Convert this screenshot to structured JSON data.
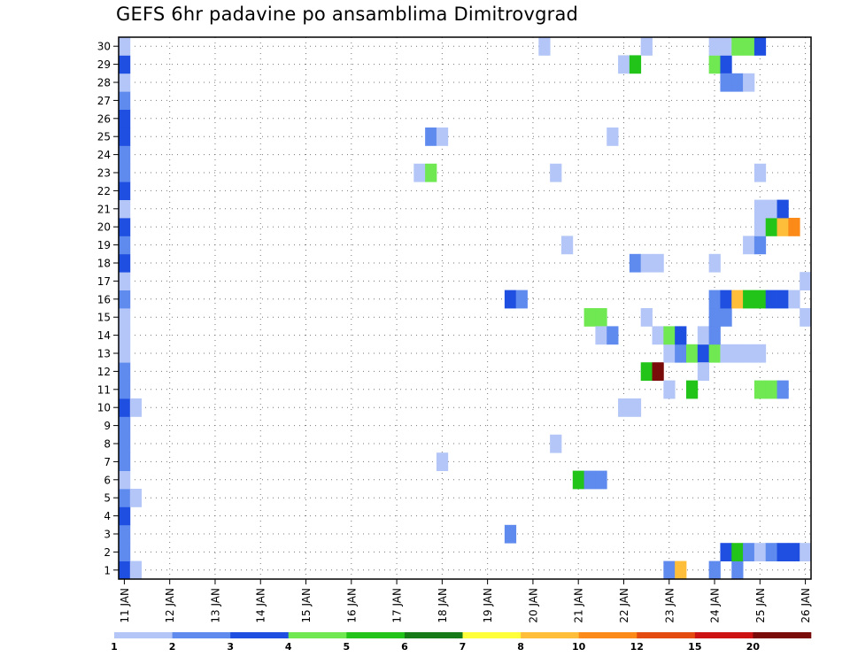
{
  "chart_data": {
    "type": "heatmap",
    "title": "GEFS 6hr padavine po ansamblima Dimitrovgrad",
    "xlabel": "",
    "ylabel": "",
    "y_ticks": [
      1,
      2,
      3,
      4,
      5,
      6,
      7,
      8,
      9,
      10,
      11,
      12,
      13,
      14,
      15,
      16,
      17,
      18,
      19,
      20,
      21,
      22,
      23,
      24,
      25,
      26,
      27,
      28,
      29,
      30
    ],
    "ylim": [
      0.5,
      30.5
    ],
    "x_ticks": [
      "11 JAN",
      "12 JAN",
      "13 JAN",
      "14 JAN",
      "15 JAN",
      "16 JAN",
      "17 JAN",
      "18 JAN",
      "19 JAN",
      "20 JAN",
      "21 JAN",
      "22 JAN",
      "23 JAN",
      "24 JAN",
      "25 JAN",
      "26 JAN"
    ],
    "x_step_hours": 6,
    "x_cells": 61,
    "grid": true,
    "legend": {
      "placement": "bottom",
      "colors": [
        "#b4c6f7",
        "#5f8aee",
        "#1f4fe0",
        "#6fe852",
        "#22c41a",
        "#167a17",
        "#ffff3a",
        "#ffbe3a",
        "#fb8a18",
        "#e44b10",
        "#cc1212",
        "#7a0b0b"
      ],
      "labels": [
        "1",
        "2",
        "3",
        "4",
        "5",
        "6",
        "7",
        "8",
        "10",
        "12",
        "15",
        "20"
      ]
    },
    "cells": [
      {
        "t": 0,
        "m": 1,
        "c": 3
      },
      {
        "t": 0,
        "m": 2,
        "c": 2
      },
      {
        "t": 0,
        "m": 3,
        "c": 2
      },
      {
        "t": 0,
        "m": 4,
        "c": 3
      },
      {
        "t": 0,
        "m": 5,
        "c": 2
      },
      {
        "t": 0,
        "m": 6,
        "c": 1
      },
      {
        "t": 0,
        "m": 7,
        "c": 2
      },
      {
        "t": 0,
        "m": 8,
        "c": 2
      },
      {
        "t": 0,
        "m": 9,
        "c": 2
      },
      {
        "t": 0,
        "m": 10,
        "c": 3
      },
      {
        "t": 0,
        "m": 11,
        "c": 2
      },
      {
        "t": 0,
        "m": 12,
        "c": 2
      },
      {
        "t": 0,
        "m": 13,
        "c": 1
      },
      {
        "t": 0,
        "m": 14,
        "c": 1
      },
      {
        "t": 0,
        "m": 15,
        "c": 1
      },
      {
        "t": 0,
        "m": 16,
        "c": 2
      },
      {
        "t": 0,
        "m": 17,
        "c": 1
      },
      {
        "t": 0,
        "m": 18,
        "c": 3
      },
      {
        "t": 0,
        "m": 19,
        "c": 2
      },
      {
        "t": 0,
        "m": 20,
        "c": 3
      },
      {
        "t": 0,
        "m": 21,
        "c": 1
      },
      {
        "t": 0,
        "m": 22,
        "c": 3
      },
      {
        "t": 0,
        "m": 23,
        "c": 2
      },
      {
        "t": 0,
        "m": 24,
        "c": 2
      },
      {
        "t": 0,
        "m": 25,
        "c": 3
      },
      {
        "t": 0,
        "m": 26,
        "c": 3
      },
      {
        "t": 0,
        "m": 27,
        "c": 2
      },
      {
        "t": 0,
        "m": 28,
        "c": 1
      },
      {
        "t": 0,
        "m": 29,
        "c": 3
      },
      {
        "t": 0,
        "m": 30,
        "c": 1
      },
      {
        "t": 1,
        "m": 1,
        "c": 1
      },
      {
        "t": 1,
        "m": 5,
        "c": 1
      },
      {
        "t": 1,
        "m": 10,
        "c": 1
      },
      {
        "t": 26,
        "m": 23,
        "c": 1
      },
      {
        "t": 27,
        "m": 23,
        "c": 4
      },
      {
        "t": 27,
        "m": 25,
        "c": 2
      },
      {
        "t": 28,
        "m": 25,
        "c": 1
      },
      {
        "t": 28,
        "m": 7,
        "c": 1
      },
      {
        "t": 34,
        "m": 3,
        "c": 2
      },
      {
        "t": 34,
        "m": 16,
        "c": 3
      },
      {
        "t": 35,
        "m": 16,
        "c": 2
      },
      {
        "t": 37,
        "m": 30,
        "c": 1
      },
      {
        "t": 38,
        "m": 8,
        "c": 1
      },
      {
        "t": 38,
        "m": 23,
        "c": 1
      },
      {
        "t": 39,
        "m": 19,
        "c": 1
      },
      {
        "t": 40,
        "m": 6,
        "c": 5
      },
      {
        "t": 41,
        "m": 6,
        "c": 2
      },
      {
        "t": 42,
        "m": 6,
        "c": 2
      },
      {
        "t": 41,
        "m": 15,
        "c": 4
      },
      {
        "t": 42,
        "m": 15,
        "c": 4
      },
      {
        "t": 42,
        "m": 14,
        "c": 1
      },
      {
        "t": 43,
        "m": 14,
        "c": 2
      },
      {
        "t": 43,
        "m": 25,
        "c": 1
      },
      {
        "t": 44,
        "m": 10,
        "c": 1
      },
      {
        "t": 45,
        "m": 10,
        "c": 1
      },
      {
        "t": 44,
        "m": 29,
        "c": 1
      },
      {
        "t": 45,
        "m": 29,
        "c": 5
      },
      {
        "t": 45,
        "m": 18,
        "c": 2
      },
      {
        "t": 46,
        "m": 18,
        "c": 1
      },
      {
        "t": 47,
        "m": 18,
        "c": 1
      },
      {
        "t": 46,
        "m": 30,
        "c": 1
      },
      {
        "t": 46,
        "m": 15,
        "c": 1
      },
      {
        "t": 46,
        "m": 12,
        "c": 5
      },
      {
        "t": 47,
        "m": 12,
        "c": 12
      },
      {
        "t": 47,
        "m": 14,
        "c": 1
      },
      {
        "t": 48,
        "m": 1,
        "c": 2
      },
      {
        "t": 49,
        "m": 1,
        "c": 8
      },
      {
        "t": 48,
        "m": 11,
        "c": 1
      },
      {
        "t": 48,
        "m": 13,
        "c": 1
      },
      {
        "t": 49,
        "m": 13,
        "c": 2
      },
      {
        "t": 50,
        "m": 13,
        "c": 4
      },
      {
        "t": 51,
        "m": 13,
        "c": 3
      },
      {
        "t": 52,
        "m": 13,
        "c": 4
      },
      {
        "t": 53,
        "m": 13,
        "c": 1
      },
      {
        "t": 54,
        "m": 13,
        "c": 1
      },
      {
        "t": 55,
        "m": 13,
        "c": 1
      },
      {
        "t": 56,
        "m": 13,
        "c": 1
      },
      {
        "t": 48,
        "m": 14,
        "c": 4
      },
      {
        "t": 49,
        "m": 14,
        "c": 3
      },
      {
        "t": 51,
        "m": 14,
        "c": 1
      },
      {
        "t": 52,
        "m": 14,
        "c": 2
      },
      {
        "t": 50,
        "m": 11,
        "c": 5
      },
      {
        "t": 51,
        "m": 12,
        "c": 1
      },
      {
        "t": 52,
        "m": 1,
        "c": 2
      },
      {
        "t": 54,
        "m": 1,
        "c": 2
      },
      {
        "t": 52,
        "m": 15,
        "c": 2
      },
      {
        "t": 53,
        "m": 15,
        "c": 2
      },
      {
        "t": 52,
        "m": 16,
        "c": 2
      },
      {
        "t": 53,
        "m": 16,
        "c": 3
      },
      {
        "t": 54,
        "m": 16,
        "c": 8
      },
      {
        "t": 55,
        "m": 16,
        "c": 5
      },
      {
        "t": 56,
        "m": 16,
        "c": 5
      },
      {
        "t": 57,
        "m": 16,
        "c": 3
      },
      {
        "t": 58,
        "m": 16,
        "c": 3
      },
      {
        "t": 59,
        "m": 16,
        "c": 1
      },
      {
        "t": 60,
        "m": 17,
        "c": 1
      },
      {
        "t": 52,
        "m": 18,
        "c": 1
      },
      {
        "t": 52,
        "m": 29,
        "c": 4
      },
      {
        "t": 53,
        "m": 29,
        "c": 3
      },
      {
        "t": 52,
        "m": 30,
        "c": 1
      },
      {
        "t": 53,
        "m": 30,
        "c": 1
      },
      {
        "t": 54,
        "m": 30,
        "c": 4
      },
      {
        "t": 55,
        "m": 30,
        "c": 4
      },
      {
        "t": 56,
        "m": 30,
        "c": 3
      },
      {
        "t": 53,
        "m": 28,
        "c": 2
      },
      {
        "t": 54,
        "m": 28,
        "c": 2
      },
      {
        "t": 55,
        "m": 28,
        "c": 1
      },
      {
        "t": 53,
        "m": 2,
        "c": 3
      },
      {
        "t": 54,
        "m": 2,
        "c": 5
      },
      {
        "t": 55,
        "m": 2,
        "c": 2
      },
      {
        "t": 56,
        "m": 2,
        "c": 1
      },
      {
        "t": 57,
        "m": 2,
        "c": 2
      },
      {
        "t": 58,
        "m": 2,
        "c": 3
      },
      {
        "t": 59,
        "m": 2,
        "c": 3
      },
      {
        "t": 60,
        "m": 2,
        "c": 1
      },
      {
        "t": 55,
        "m": 19,
        "c": 1
      },
      {
        "t": 56,
        "m": 19,
        "c": 2
      },
      {
        "t": 56,
        "m": 11,
        "c": 4
      },
      {
        "t": 57,
        "m": 11,
        "c": 4
      },
      {
        "t": 58,
        "m": 11,
        "c": 2
      },
      {
        "t": 56,
        "m": 20,
        "c": 1
      },
      {
        "t": 57,
        "m": 20,
        "c": 5
      },
      {
        "t": 58,
        "m": 20,
        "c": 8
      },
      {
        "t": 59,
        "m": 20,
        "c": 9
      },
      {
        "t": 56,
        "m": 21,
        "c": 1
      },
      {
        "t": 57,
        "m": 21,
        "c": 1
      },
      {
        "t": 58,
        "m": 21,
        "c": 3
      },
      {
        "t": 56,
        "m": 23,
        "c": 1
      },
      {
        "t": 60,
        "m": 15,
        "c": 1
      }
    ]
  }
}
